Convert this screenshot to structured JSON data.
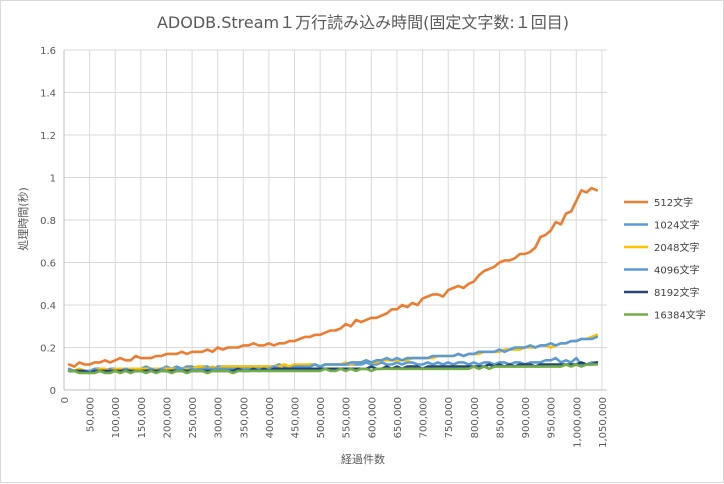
{
  "chart_data": {
    "type": "line",
    "title": "ADODB.Stream１万行読み込み時間(固定文字数:１回目)",
    "xlabel": "経過件数",
    "ylabel": "処理時間(秒)",
    "ylim": [
      0,
      1.6
    ],
    "yticks": [
      "0",
      "0.2",
      "0.4",
      "0.6",
      "0.8",
      "1",
      "1.2",
      "1.4",
      "1.6"
    ],
    "xlim": [
      0,
      1060000
    ],
    "xticks": [
      "0",
      "50,000",
      "100,000",
      "150,000",
      "200,000",
      "250,000",
      "300,000",
      "350,000",
      "400,000",
      "450,000",
      "500,000",
      "550,000",
      "600,000",
      "650,000",
      "700,000",
      "750,000",
      "800,000",
      "850,000",
      "900,000",
      "950,000",
      "1,000,000",
      "1,050,000"
    ],
    "grid": true,
    "legend": "right",
    "x_start": 10000,
    "x_step": 10000,
    "series": [
      {
        "name": "512文字",
        "color": "#ED7D31",
        "values": [
          0.12,
          0.11,
          0.13,
          0.12,
          0.12,
          0.13,
          0.13,
          0.14,
          0.13,
          0.14,
          0.15,
          0.14,
          0.14,
          0.16,
          0.15,
          0.15,
          0.15,
          0.16,
          0.16,
          0.17,
          0.17,
          0.17,
          0.18,
          0.17,
          0.18,
          0.18,
          0.18,
          0.19,
          0.18,
          0.2,
          0.19,
          0.2,
          0.2,
          0.2,
          0.21,
          0.21,
          0.22,
          0.21,
          0.21,
          0.22,
          0.21,
          0.22,
          0.22,
          0.23,
          0.23,
          0.24,
          0.25,
          0.25,
          0.26,
          0.26,
          0.27,
          0.28,
          0.28,
          0.29,
          0.31,
          0.3,
          0.33,
          0.32,
          0.33,
          0.34,
          0.34,
          0.35,
          0.36,
          0.38,
          0.38,
          0.4,
          0.39,
          0.41,
          0.4,
          0.43,
          0.44,
          0.45,
          0.45,
          0.44,
          0.47,
          0.48,
          0.49,
          0.48,
          0.5,
          0.51,
          0.54,
          0.56,
          0.57,
          0.58,
          0.6,
          0.61,
          0.61,
          0.62,
          0.64,
          0.64,
          0.65,
          0.67,
          0.72,
          0.73,
          0.75,
          0.79,
          0.78,
          0.83,
          0.84,
          0.89,
          0.94,
          0.93,
          0.95,
          0.94
        ]
      },
      {
        "name": "1024文字",
        "color": "#5B9BD5",
        "values": [
          0.1,
          0.09,
          0.1,
          0.09,
          0.09,
          0.1,
          0.1,
          0.09,
          0.1,
          0.1,
          0.1,
          0.1,
          0.1,
          0.1,
          0.1,
          0.11,
          0.1,
          0.1,
          0.1,
          0.11,
          0.1,
          0.11,
          0.1,
          0.11,
          0.11,
          0.1,
          0.11,
          0.11,
          0.1,
          0.11,
          0.11,
          0.11,
          0.11,
          0.11,
          0.11,
          0.11,
          0.11,
          0.11,
          0.11,
          0.11,
          0.11,
          0.12,
          0.11,
          0.11,
          0.12,
          0.11,
          0.11,
          0.12,
          0.12,
          0.11,
          0.12,
          0.12,
          0.12,
          0.12,
          0.12,
          0.12,
          0.12,
          0.12,
          0.13,
          0.12,
          0.12,
          0.13,
          0.12,
          0.12,
          0.13,
          0.12,
          0.13,
          0.13,
          0.12,
          0.12,
          0.13,
          0.12,
          0.13,
          0.12,
          0.13,
          0.12,
          0.13,
          0.13,
          0.12,
          0.13,
          0.12,
          0.13,
          0.13,
          0.12,
          0.13,
          0.13,
          0.12,
          0.13,
          0.13,
          0.12,
          0.13,
          0.13,
          0.13,
          0.14,
          0.14,
          0.15,
          0.13,
          0.14,
          0.13,
          0.15,
          0.12,
          0.12,
          0.13,
          0.13
        ]
      },
      {
        "name": "2048文字",
        "color": "#FFC000",
        "values": [
          0.09,
          0.09,
          0.1,
          0.09,
          0.09,
          0.09,
          0.1,
          0.1,
          0.09,
          0.1,
          0.1,
          0.1,
          0.1,
          0.1,
          0.1,
          0.1,
          0.1,
          0.1,
          0.1,
          0.1,
          0.1,
          0.1,
          0.1,
          0.1,
          0.1,
          0.11,
          0.11,
          0.1,
          0.11,
          0.1,
          0.11,
          0.11,
          0.11,
          0.11,
          0.11,
          0.11,
          0.11,
          0.11,
          0.11,
          0.11,
          0.11,
          0.11,
          0.12,
          0.11,
          0.12,
          0.12,
          0.12,
          0.12,
          0.12,
          0.11,
          0.12,
          0.12,
          0.12,
          0.12,
          0.13,
          0.12,
          0.13,
          0.13,
          0.14,
          0.13,
          0.13,
          0.14,
          0.14,
          0.14,
          0.14,
          0.14,
          0.14,
          0.15,
          0.15,
          0.15,
          0.15,
          0.15,
          0.16,
          0.16,
          0.16,
          0.16,
          0.17,
          0.16,
          0.17,
          0.17,
          0.17,
          0.18,
          0.18,
          0.18,
          0.18,
          0.19,
          0.19,
          0.19,
          0.19,
          0.2,
          0.2,
          0.2,
          0.21,
          0.21,
          0.2,
          0.21,
          0.22,
          0.22,
          0.23,
          0.23,
          0.24,
          0.24,
          0.25,
          0.26
        ]
      },
      {
        "name": "4096文字",
        "color": "#5B9BD5",
        "values": [
          0.09,
          0.09,
          0.09,
          0.09,
          0.09,
          0.09,
          0.09,
          0.09,
          0.09,
          0.09,
          0.09,
          0.1,
          0.09,
          0.09,
          0.09,
          0.09,
          0.1,
          0.09,
          0.1,
          0.09,
          0.09,
          0.1,
          0.1,
          0.09,
          0.1,
          0.09,
          0.1,
          0.1,
          0.1,
          0.1,
          0.1,
          0.1,
          0.1,
          0.1,
          0.1,
          0.1,
          0.1,
          0.1,
          0.1,
          0.1,
          0.11,
          0.1,
          0.1,
          0.1,
          0.11,
          0.11,
          0.11,
          0.11,
          0.12,
          0.11,
          0.12,
          0.12,
          0.12,
          0.12,
          0.12,
          0.13,
          0.13,
          0.13,
          0.14,
          0.13,
          0.14,
          0.14,
          0.15,
          0.14,
          0.15,
          0.14,
          0.15,
          0.15,
          0.15,
          0.15,
          0.15,
          0.16,
          0.16,
          0.16,
          0.16,
          0.16,
          0.17,
          0.16,
          0.17,
          0.17,
          0.18,
          0.18,
          0.18,
          0.18,
          0.19,
          0.18,
          0.19,
          0.2,
          0.2,
          0.2,
          0.21,
          0.2,
          0.21,
          0.21,
          0.22,
          0.21,
          0.22,
          0.22,
          0.23,
          0.23,
          0.24,
          0.24,
          0.24,
          0.25
        ]
      },
      {
        "name": "8192文字",
        "color": "#264478",
        "values": [
          0.09,
          0.09,
          0.09,
          0.09,
          0.08,
          0.09,
          0.09,
          0.09,
          0.09,
          0.09,
          0.09,
          0.09,
          0.09,
          0.09,
          0.09,
          0.09,
          0.09,
          0.09,
          0.09,
          0.09,
          0.09,
          0.09,
          0.09,
          0.09,
          0.09,
          0.09,
          0.09,
          0.09,
          0.09,
          0.09,
          0.09,
          0.09,
          0.09,
          0.1,
          0.09,
          0.09,
          0.1,
          0.09,
          0.1,
          0.09,
          0.1,
          0.1,
          0.1,
          0.1,
          0.1,
          0.1,
          0.1,
          0.1,
          0.1,
          0.1,
          0.1,
          0.1,
          0.1,
          0.1,
          0.1,
          0.1,
          0.1,
          0.1,
          0.1,
          0.11,
          0.1,
          0.1,
          0.11,
          0.1,
          0.11,
          0.1,
          0.11,
          0.11,
          0.11,
          0.1,
          0.11,
          0.11,
          0.11,
          0.11,
          0.11,
          0.11,
          0.11,
          0.11,
          0.11,
          0.11,
          0.11,
          0.11,
          0.12,
          0.11,
          0.12,
          0.11,
          0.12,
          0.11,
          0.12,
          0.12,
          0.12,
          0.11,
          0.12,
          0.12,
          0.12,
          0.12,
          0.12,
          0.12,
          0.12,
          0.12,
          0.13,
          0.12,
          0.12,
          0.13
        ]
      },
      {
        "name": "16384文字",
        "color": "#70AD47",
        "values": [
          0.09,
          0.09,
          0.08,
          0.08,
          0.08,
          0.08,
          0.09,
          0.08,
          0.08,
          0.09,
          0.08,
          0.09,
          0.08,
          0.09,
          0.09,
          0.08,
          0.09,
          0.08,
          0.09,
          0.09,
          0.08,
          0.09,
          0.09,
          0.08,
          0.09,
          0.09,
          0.09,
          0.08,
          0.09,
          0.09,
          0.09,
          0.09,
          0.08,
          0.09,
          0.09,
          0.09,
          0.09,
          0.09,
          0.09,
          0.09,
          0.09,
          0.09,
          0.09,
          0.09,
          0.09,
          0.09,
          0.09,
          0.09,
          0.09,
          0.09,
          0.1,
          0.09,
          0.09,
          0.1,
          0.09,
          0.1,
          0.09,
          0.1,
          0.1,
          0.09,
          0.1,
          0.1,
          0.1,
          0.1,
          0.1,
          0.1,
          0.1,
          0.1,
          0.1,
          0.1,
          0.1,
          0.1,
          0.1,
          0.1,
          0.1,
          0.1,
          0.1,
          0.1,
          0.1,
          0.11,
          0.1,
          0.11,
          0.1,
          0.11,
          0.11,
          0.11,
          0.11,
          0.11,
          0.11,
          0.11,
          0.11,
          0.11,
          0.11,
          0.11,
          0.11,
          0.11,
          0.11,
          0.12,
          0.11,
          0.12,
          0.11,
          0.12,
          0.12,
          0.12
        ]
      }
    ]
  }
}
